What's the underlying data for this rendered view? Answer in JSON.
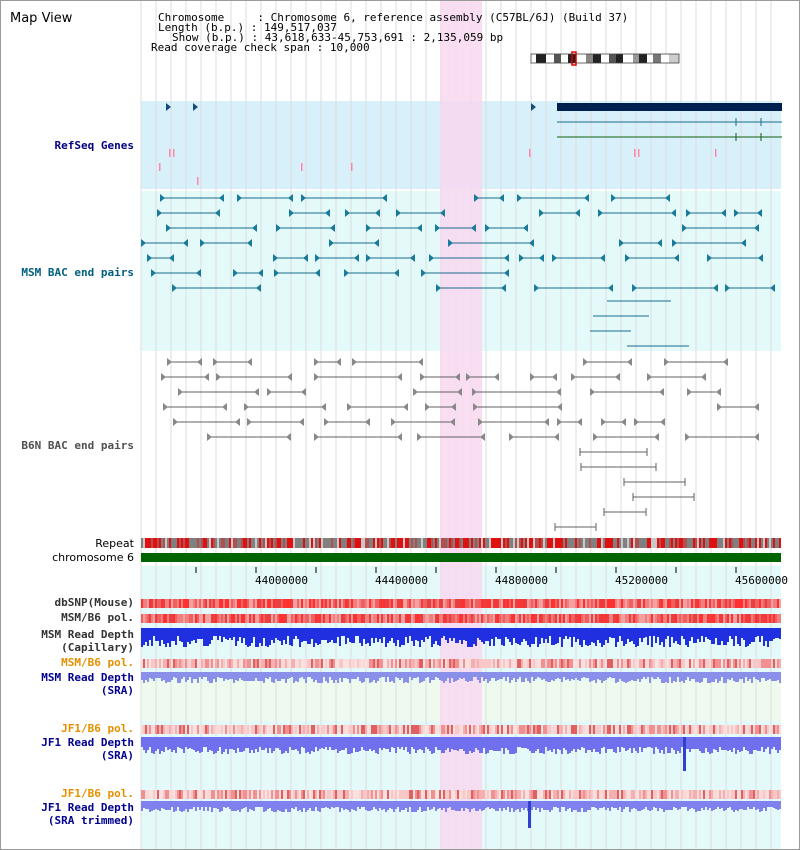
{
  "view_title": "Map View",
  "info": {
    "chromosome_label": "Chromosome",
    "chromosome_value": "Chromosome 6, reference assembly (C57BL/6J) (Build 37)",
    "length_label": "Length (b.p.)",
    "length_value": "149,517,037",
    "show_label": "Show (b.p.)",
    "show_value": "43,618,633-45,753,691 : 2,135,059 bp",
    "coverage_label": "Read coverage check span",
    "coverage_value": "10,000"
  },
  "tracks": {
    "refseq": "RefSeq Genes",
    "msm_bac": "MSM BAC end pairs",
    "b6n_bac": "B6N BAC end pairs",
    "repeat": "Repeat",
    "chromosome": "chromosome 6",
    "dbsnp": "dbSNP(Mouse)",
    "msm_b6_pol_1": "MSM/B6 pol.",
    "msm_depth_cap_1": "MSM Read Depth",
    "msm_depth_cap_2": "(Capillary)",
    "msm_b6_pol_2": "MSM/B6 pol.",
    "msm_depth_sra_1": "MSM Read Depth",
    "msm_depth_sra_2": "(SRA)",
    "jf1_b6_pol_1": "JF1/B6 pol.",
    "jf1_depth_sra_1": "JF1 Read Depth",
    "jf1_depth_sra_2": "(SRA)",
    "jf1_b6_pol_2": "JF1/B6 pol.",
    "jf1_depth_trim_1": "JF1 Read Depth",
    "jf1_depth_trim_2": "(SRA trimmed)"
  },
  "axis_ticks": [
    "44000000",
    "44400000",
    "44800000",
    "45200000",
    "45600000"
  ],
  "colors": {
    "refseq_label": "#000080",
    "msm_bac_label": "#006080",
    "b6n_label": "#505050",
    "pol_label_orange": "#e69000",
    "depth_label_blue": "#000090",
    "highlight": "#f8d8f0",
    "refseq_bg": "#d8f0fa",
    "track_bg": "#e4fafa",
    "chromosome_bar": "#006400"
  }
}
